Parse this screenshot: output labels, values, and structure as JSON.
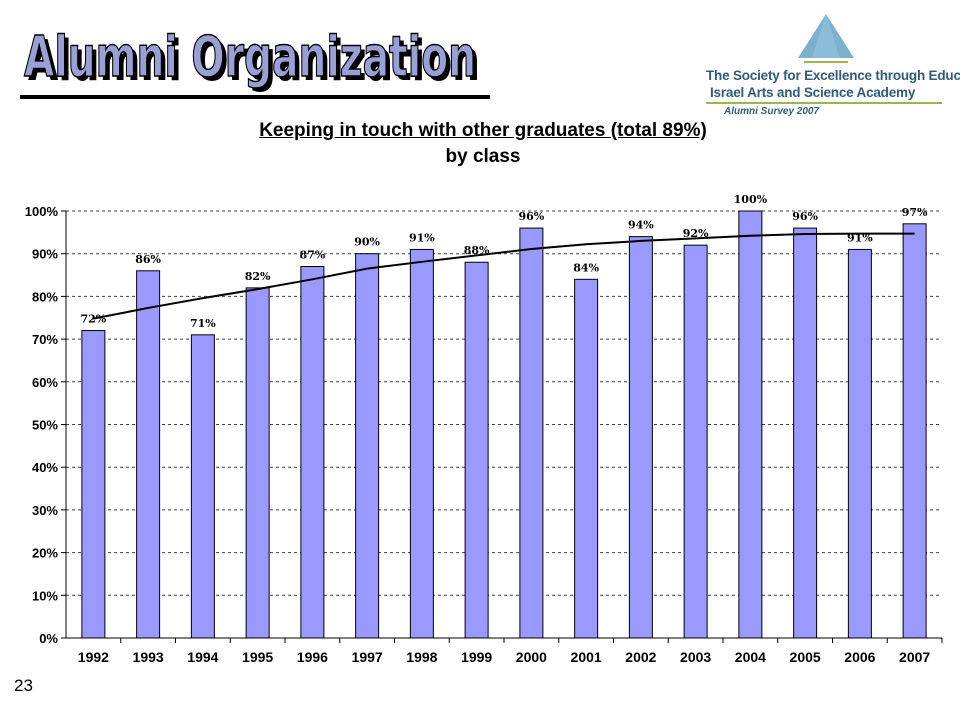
{
  "header": {
    "title": "Alumni Organization",
    "title_color": "#9a9fd6",
    "title_shadow_color": "#000000"
  },
  "logo": {
    "line1": "The Society for Excellence through Education",
    "line2": "Israel Arts and Science Academy",
    "line3": "Alumni Survey 2007",
    "icon": "triangle-logo-icon",
    "accent_color": "#6fa6c9"
  },
  "slide_number": "23",
  "chart_data": {
    "type": "bar",
    "title": "Keeping in touch with other graduates (total 89%)",
    "subtitle": "by class",
    "xlabel": "",
    "ylabel": "",
    "categories": [
      "1992",
      "1993",
      "1994",
      "1995",
      "1996",
      "1997",
      "1998",
      "1999",
      "2000",
      "2001",
      "2002",
      "2003",
      "2004",
      "2005",
      "2006",
      "2007"
    ],
    "values": [
      72,
      86,
      71,
      82,
      87,
      90,
      91,
      88,
      96,
      84,
      94,
      92,
      100,
      96,
      91,
      97
    ],
    "data_labels": [
      "72%",
      "86%",
      "71%",
      "82%",
      "87%",
      "90%",
      "91%",
      "88%",
      "96%",
      "84%",
      "94%",
      "92%",
      "100%",
      "96%",
      "91%",
      "97%"
    ],
    "trendline": [
      74.8,
      77.3,
      79.6,
      81.7,
      84.0,
      86.5,
      88.1,
      89.6,
      91.1,
      92.2,
      93.0,
      93.6,
      94.2,
      94.6,
      94.7,
      94.7
    ],
    "ylim": [
      0,
      100
    ],
    "yticks": [
      0,
      10,
      20,
      30,
      40,
      50,
      60,
      70,
      80,
      90,
      100
    ],
    "ytick_labels": [
      "0%",
      "10%",
      "20%",
      "30%",
      "40%",
      "50%",
      "60%",
      "70%",
      "80%",
      "90%",
      "100%"
    ],
    "grid": "horizontal dashed",
    "bar_color": "#9999ff",
    "bar_edge_color": "#000000",
    "trend_color": "#000000"
  }
}
